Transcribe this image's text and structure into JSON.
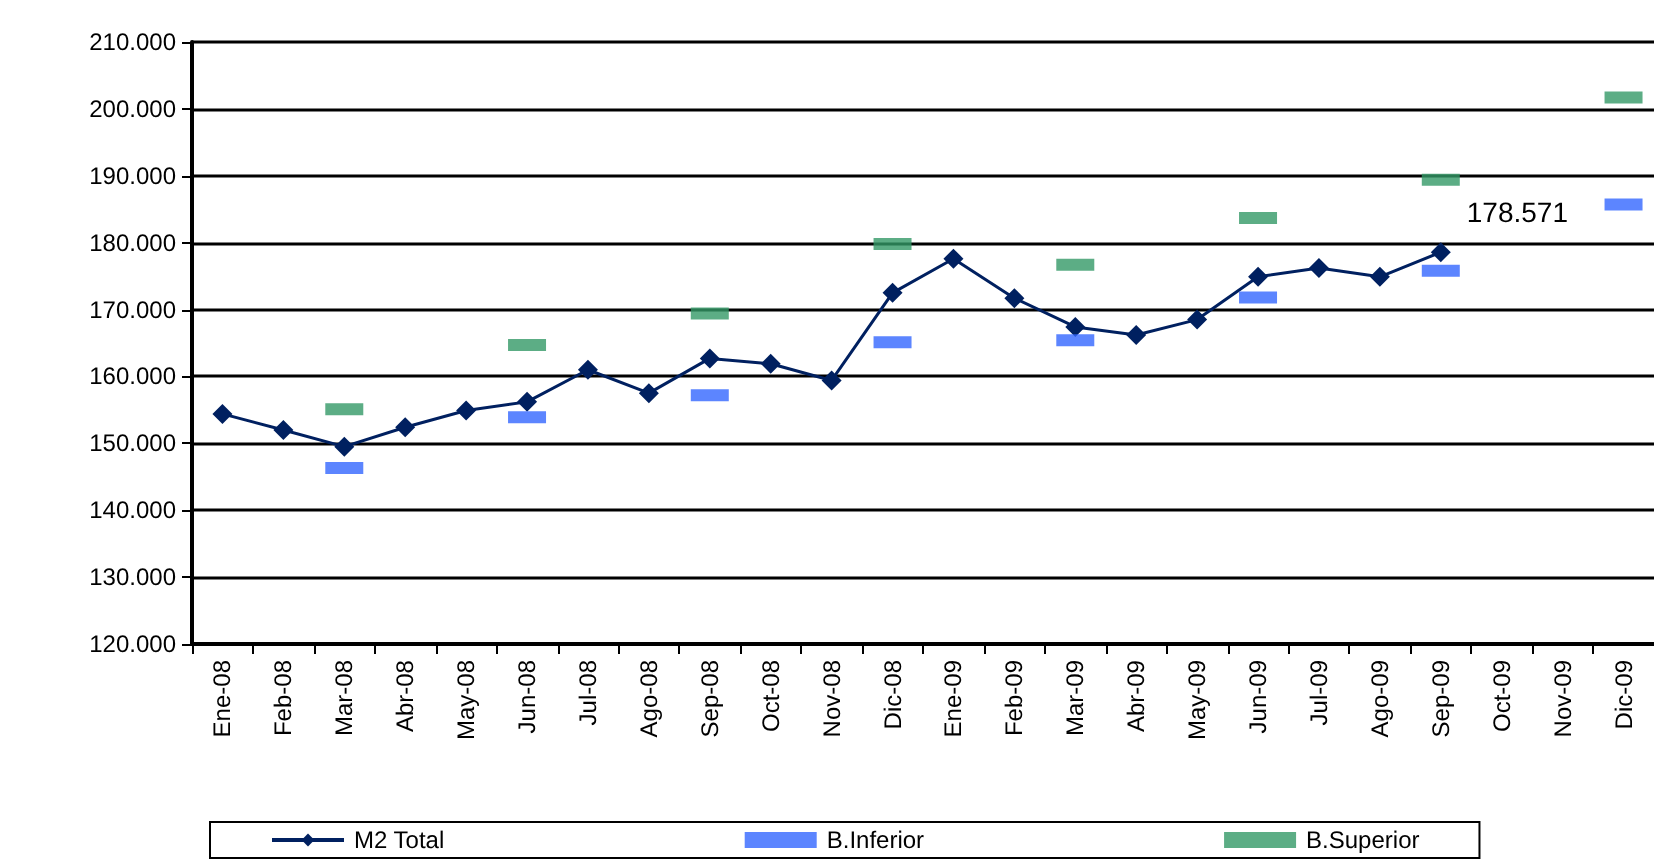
{
  "chart_data": {
    "type": "line",
    "categories": [
      "Ene-08",
      "Feb-08",
      "Mar-08",
      "Abr-08",
      "May-08",
      "Jun-08",
      "Jul-08",
      "Ago-08",
      "Sep-08",
      "Oct-08",
      "Nov-08",
      "Dic-08",
      "Ene-09",
      "Feb-09",
      "Mar-09",
      "Abr-09",
      "May-09",
      "Jun-09",
      "Jul-09",
      "Ago-09",
      "Sep-09",
      "Oct-09",
      "Nov-09",
      "Dic-09"
    ],
    "series": [
      {
        "name": "M2 Total",
        "color": "#002060",
        "marker": "diamond",
        "values": [
          154400,
          152000,
          149500,
          152400,
          154900,
          156200,
          161000,
          157500,
          162700,
          161900,
          159400,
          172500,
          177600,
          171700,
          167400,
          166200,
          168500,
          174900,
          176200,
          174900,
          178571,
          null,
          null,
          null
        ],
        "value_labels": [
          null,
          null,
          null,
          null,
          null,
          null,
          null,
          null,
          null,
          null,
          null,
          null,
          null,
          null,
          null,
          null,
          null,
          null,
          null,
          null,
          "178.571",
          null,
          null,
          null
        ]
      },
      {
        "name": "B.Inferior",
        "type": "scatter",
        "color": "#3366ff",
        "marker": "square",
        "values": [
          null,
          null,
          146300,
          null,
          null,
          153900,
          null,
          null,
          157200,
          null,
          null,
          165100,
          null,
          null,
          165400,
          null,
          null,
          171800,
          null,
          null,
          175800,
          null,
          null,
          185700
        ]
      },
      {
        "name": "B.Superior",
        "type": "scatter",
        "color": "#339966",
        "marker": "square",
        "values": [
          null,
          null,
          155100,
          null,
          null,
          164700,
          null,
          null,
          169400,
          null,
          null,
          179800,
          null,
          null,
          176700,
          null,
          null,
          183700,
          null,
          null,
          189400,
          null,
          null,
          201700
        ]
      }
    ],
    "ylim": [
      120000,
      210000
    ],
    "yticks": [
      {
        "value": 120000,
        "label": "120.000"
      },
      {
        "value": 130000,
        "label": "130.000"
      },
      {
        "value": 140000,
        "label": "140.000"
      },
      {
        "value": 150000,
        "label": "150.000"
      },
      {
        "value": 160000,
        "label": "160.000"
      },
      {
        "value": 170000,
        "label": "170.000"
      },
      {
        "value": 180000,
        "label": "180.000"
      },
      {
        "value": 190000,
        "label": "190.000"
      },
      {
        "value": 200000,
        "label": "200.000"
      },
      {
        "value": 210000,
        "label": "210.000"
      }
    ],
    "grid": "y",
    "legend": "bottom"
  }
}
